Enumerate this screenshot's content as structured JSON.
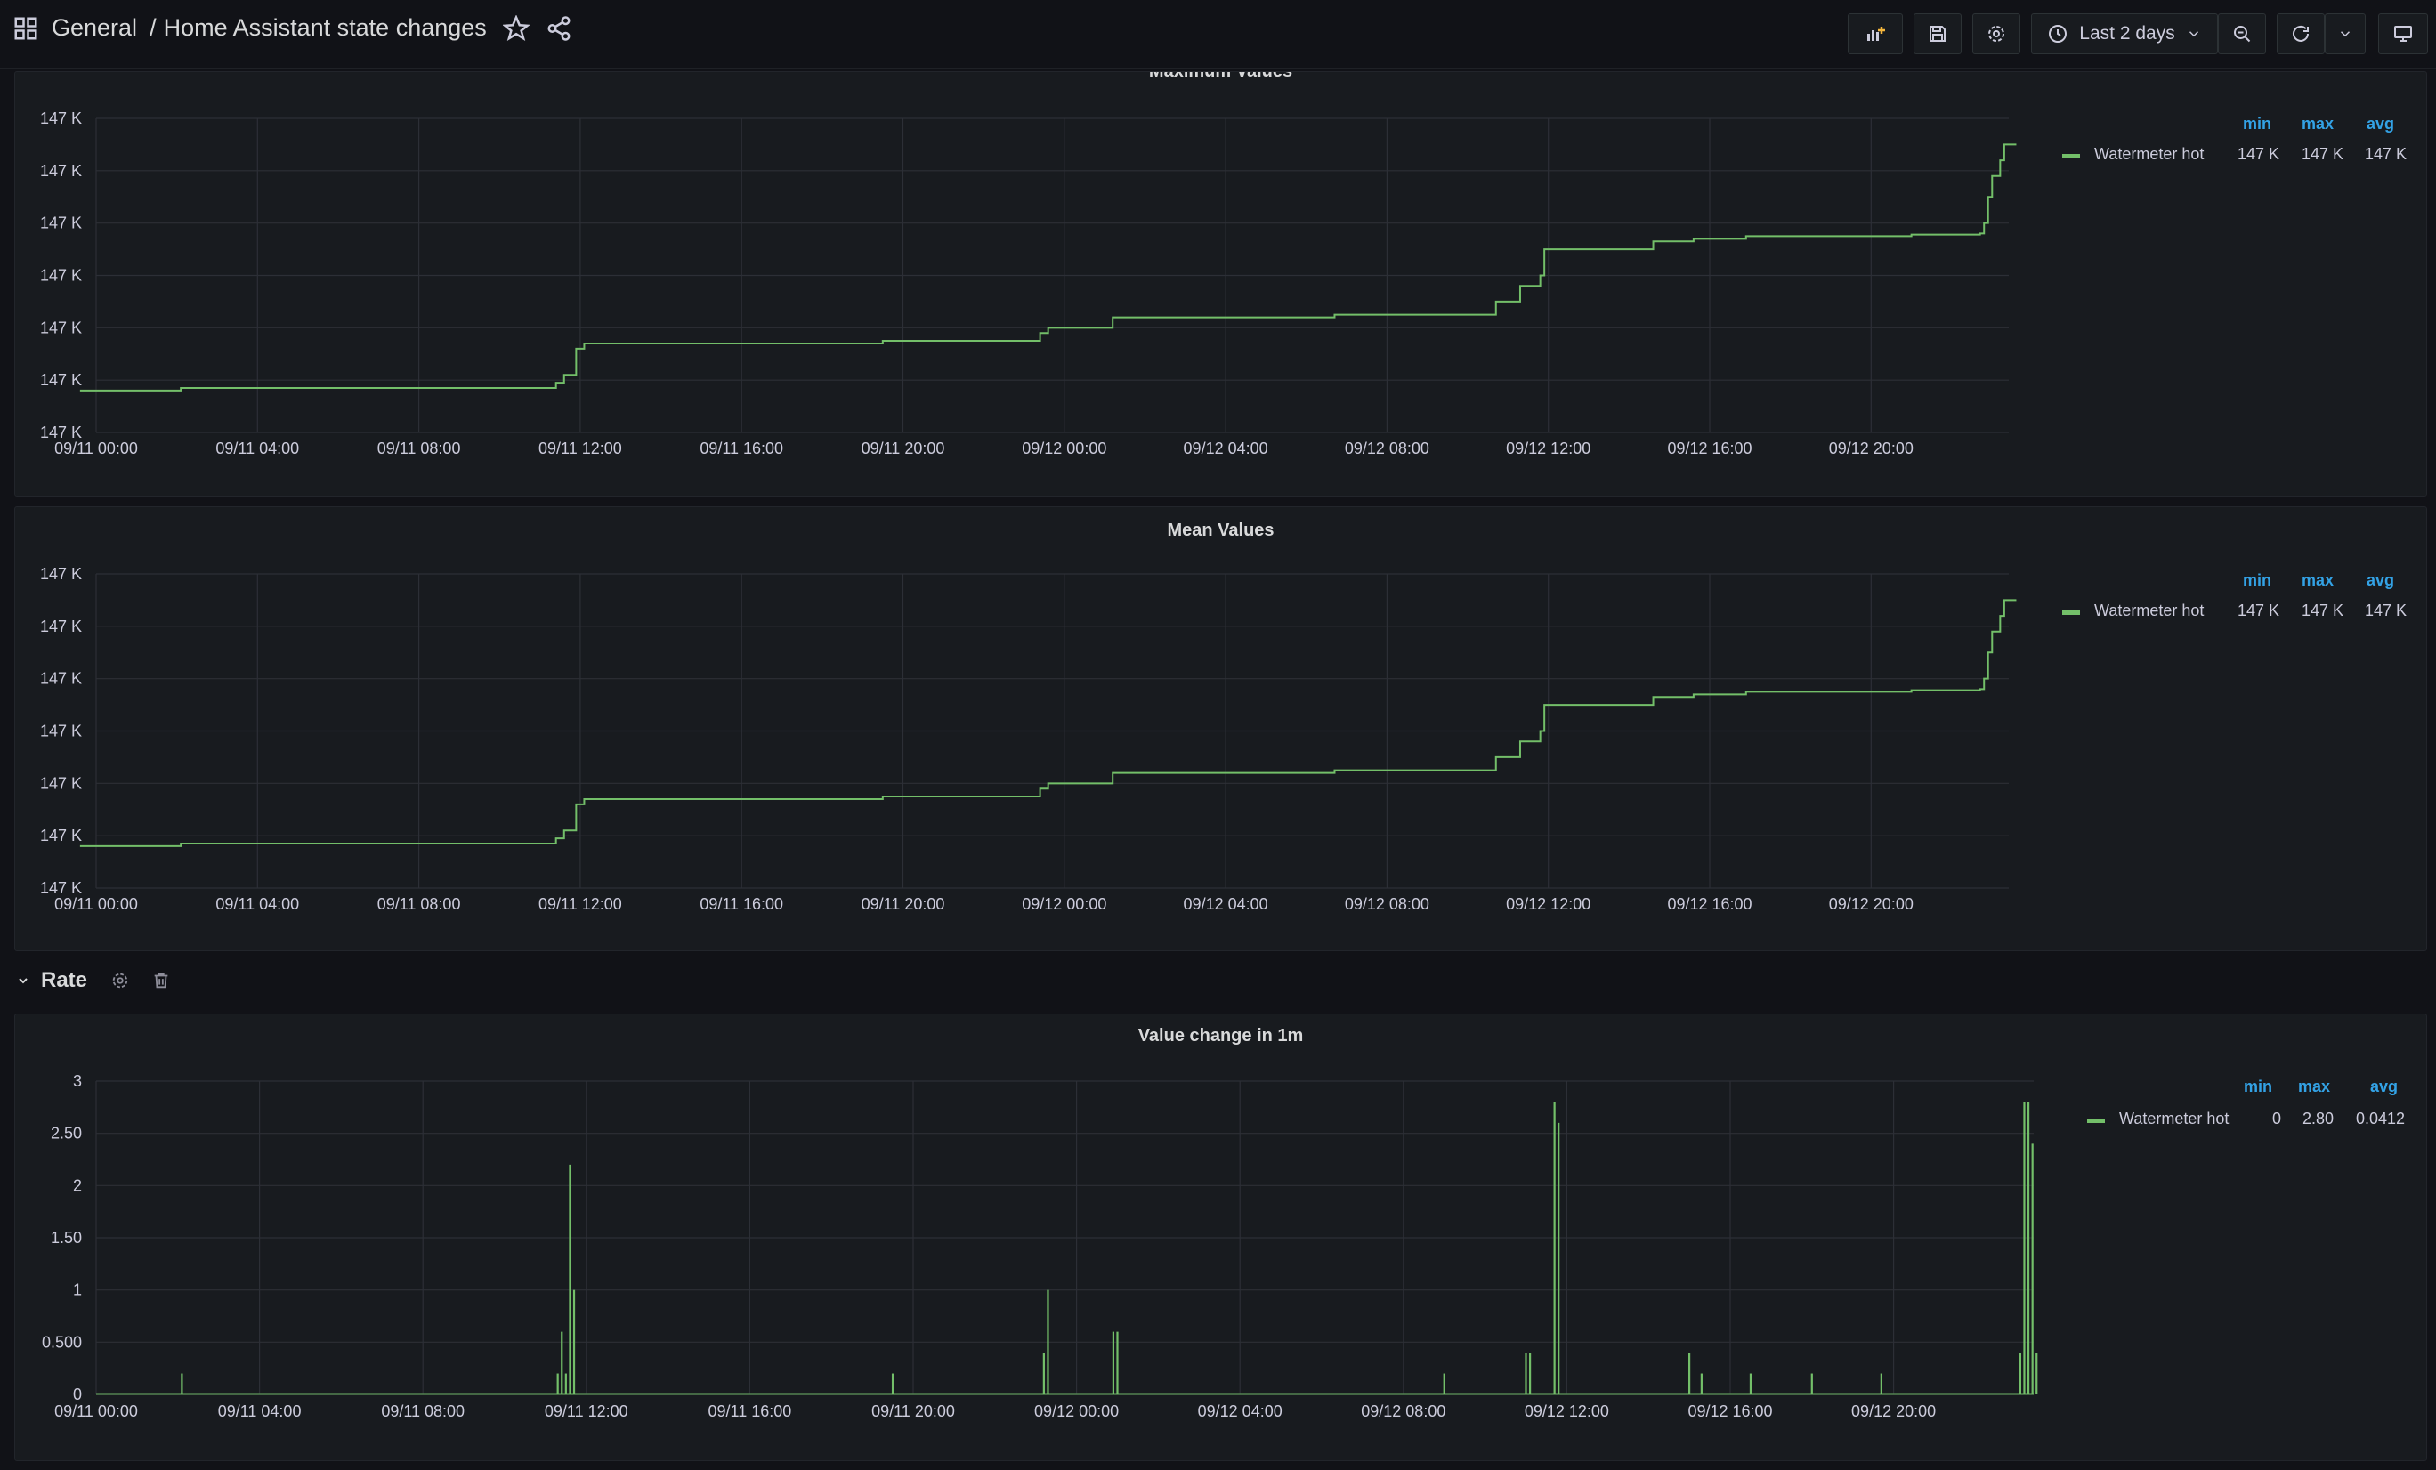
{
  "breadcrumb": {
    "folder": "General",
    "separator": "/",
    "dashboard": "Home Assistant state changes"
  },
  "toolbar": {
    "time_range": "Last 2 days"
  },
  "icons": [
    "apps-icon",
    "star-icon",
    "share-icon",
    "add-panel-icon",
    "save-icon",
    "settings-icon",
    "clock-icon",
    "chevron-down-icon",
    "zoom-out-icon",
    "refresh-icon",
    "tv-icon",
    "cog-icon",
    "trash-icon"
  ],
  "colors": {
    "series": "#73bf69",
    "legend_header": "#33a2e5",
    "panel_bg": "#181b1f",
    "page_bg": "#111217"
  },
  "row": {
    "title": "Rate"
  },
  "legend_headers": {
    "min": "min",
    "max": "max",
    "avg": "avg"
  },
  "panels": [
    {
      "title": "Maximum Values",
      "legend": {
        "name": "Watermeter hot",
        "min": "147 K",
        "max": "147 K",
        "avg": "147 K"
      }
    },
    {
      "title": "Mean Values",
      "legend": {
        "name": "Watermeter hot",
        "min": "147 K",
        "max": "147 K",
        "avg": "147 K"
      }
    },
    {
      "title": "Value change in 1m",
      "legend": {
        "name": "Watermeter hot",
        "min": "0",
        "max": "2.80",
        "avg": "0.0412"
      }
    }
  ],
  "chart_data": [
    {
      "type": "line",
      "title": "Maximum Values",
      "x_ticks": [
        "09/11 00:00",
        "09/11 04:00",
        "09/11 08:00",
        "09/11 12:00",
        "09/11 16:00",
        "09/11 20:00",
        "09/12 00:00",
        "09/12 04:00",
        "09/12 08:00",
        "09/12 12:00",
        "09/12 16:00",
        "09/12 20:00"
      ],
      "y_ticks": [
        "147 K",
        "147 K",
        "147 K",
        "147 K",
        "147 K",
        "147 K",
        "147 K"
      ],
      "ylim": [
        0,
        6
      ],
      "grid": true,
      "legend_placement": "right",
      "series": [
        {
          "name": "Watermeter hot",
          "x": [
            -0.4,
            2.1,
            11.4,
            11.6,
            11.9,
            12.1,
            19.5,
            23.4,
            23.6,
            25.2,
            30.7,
            34.7,
            35.3,
            35.8,
            35.9,
            38.6,
            39.6,
            40.9,
            45.0,
            46.7,
            46.8,
            46.9,
            47.0,
            47.2,
            47.3,
            47.6
          ],
          "y": [
            0.8,
            0.85,
            0.95,
            1.1,
            1.6,
            1.7,
            1.75,
            1.9,
            2.0,
            2.2,
            2.25,
            2.5,
            2.8,
            3.0,
            3.5,
            3.65,
            3.7,
            3.75,
            3.78,
            3.8,
            4.0,
            4.5,
            4.9,
            5.2,
            5.5,
            5.5
          ]
        }
      ]
    },
    {
      "type": "line",
      "title": "Mean Values",
      "x_ticks": [
        "09/11 00:00",
        "09/11 04:00",
        "09/11 08:00",
        "09/11 12:00",
        "09/11 16:00",
        "09/11 20:00",
        "09/12 00:00",
        "09/12 04:00",
        "09/12 08:00",
        "09/12 12:00",
        "09/12 16:00",
        "09/12 20:00"
      ],
      "y_ticks": [
        "147 K",
        "147 K",
        "147 K",
        "147 K",
        "147 K",
        "147 K",
        "147 K"
      ],
      "ylim": [
        0,
        6
      ],
      "grid": true,
      "legend_placement": "right",
      "series": [
        {
          "name": "Watermeter hot",
          "x": [
            -0.4,
            2.1,
            11.4,
            11.6,
            11.9,
            12.1,
            19.5,
            23.4,
            23.6,
            25.2,
            30.7,
            34.7,
            35.3,
            35.8,
            35.9,
            38.6,
            39.6,
            40.9,
            45.0,
            46.7,
            46.8,
            46.9,
            47.0,
            47.2,
            47.3,
            47.6
          ],
          "y": [
            0.8,
            0.85,
            0.95,
            1.1,
            1.6,
            1.7,
            1.75,
            1.9,
            2.0,
            2.2,
            2.25,
            2.5,
            2.8,
            3.0,
            3.5,
            3.65,
            3.7,
            3.75,
            3.78,
            3.8,
            4.0,
            4.5,
            4.9,
            5.2,
            5.5,
            5.5
          ]
        }
      ]
    },
    {
      "type": "bar",
      "title": "Value change in 1m",
      "x_ticks": [
        "09/11 00:00",
        "09/11 04:00",
        "09/11 08:00",
        "09/11 12:00",
        "09/11 16:00",
        "09/11 20:00",
        "09/12 00:00",
        "09/12 04:00",
        "09/12 08:00",
        "09/12 12:00",
        "09/12 16:00",
        "09/12 20:00"
      ],
      "y_ticks": [
        "0",
        "0.500",
        "1",
        "1.50",
        "2",
        "2.50",
        "3"
      ],
      "ylim": [
        0,
        3
      ],
      "grid": true,
      "legend_placement": "right",
      "series": [
        {
          "name": "Watermeter hot",
          "x": [
            2.1,
            11.3,
            11.4,
            11.5,
            11.6,
            11.7,
            19.5,
            23.2,
            23.3,
            24.9,
            25.0,
            33.0,
            35.0,
            35.1,
            35.7,
            35.8,
            39.0,
            39.3,
            40.5,
            42.0,
            43.7,
            47.1,
            47.2,
            47.3,
            47.4,
            47.5
          ],
          "y": [
            0.2,
            0.2,
            0.6,
            0.2,
            2.2,
            1.0,
            0.2,
            0.4,
            1.0,
            0.6,
            0.6,
            0.2,
            0.4,
            0.4,
            2.8,
            2.6,
            0.4,
            0.2,
            0.2,
            0.2,
            0.2,
            0.4,
            2.8,
            2.8,
            2.4,
            0.4
          ]
        }
      ]
    }
  ]
}
